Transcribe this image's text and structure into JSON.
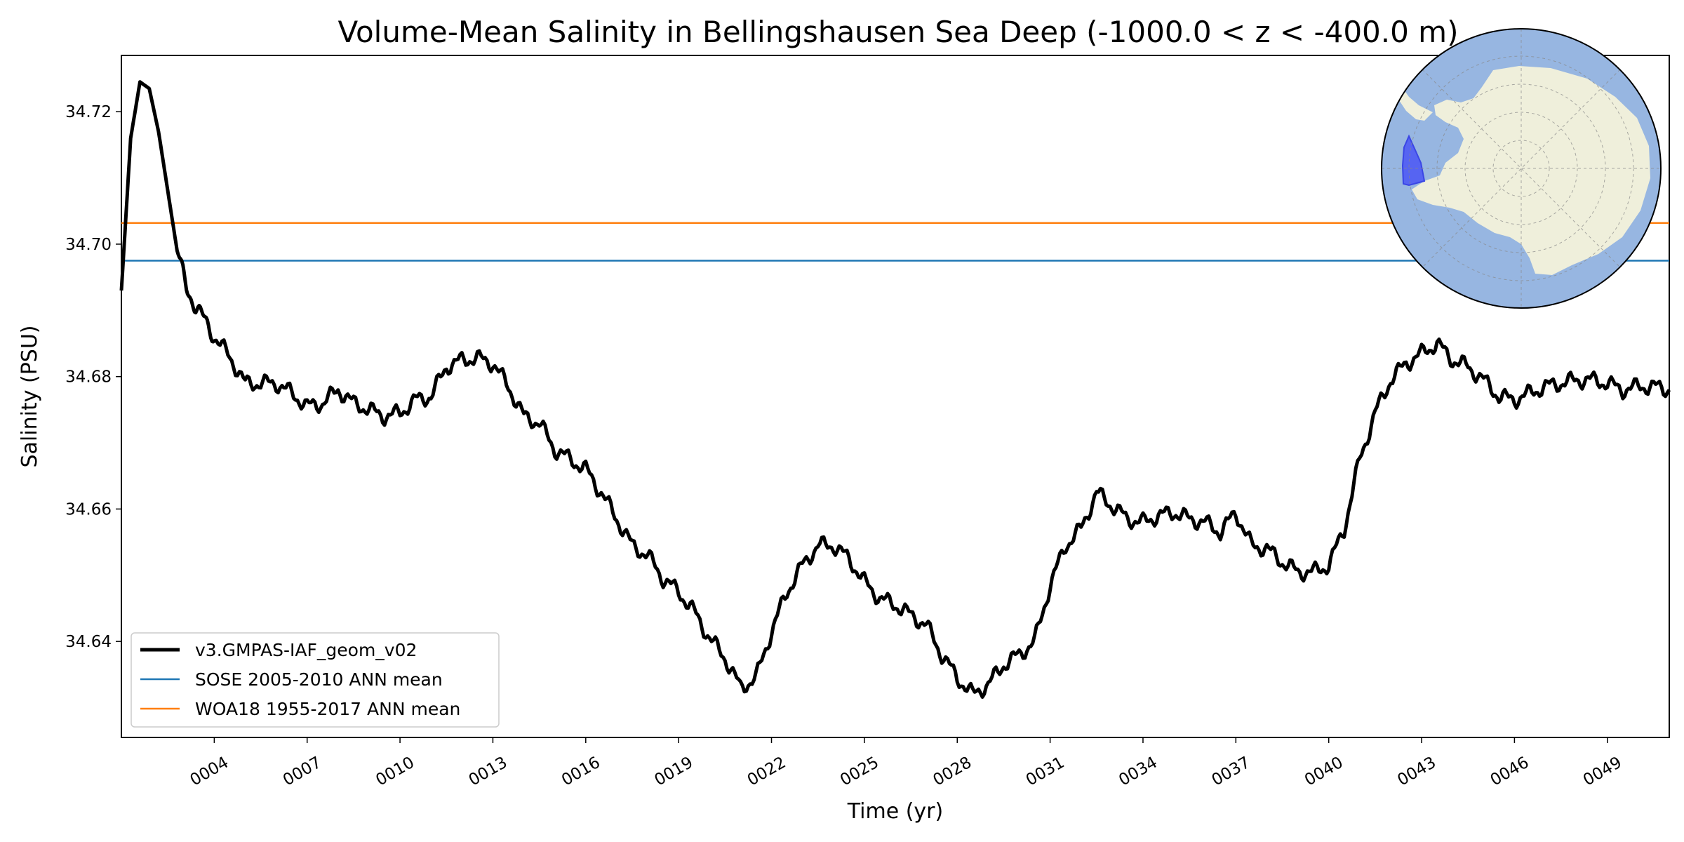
{
  "chart_data": {
    "type": "line",
    "title": "Volume-Mean Salinity in Bellingshausen Sea Deep (-1000.0 < z < -400.0 m)",
    "xlabel": "Time (yr)",
    "ylabel": "Salinity (PSU)",
    "xlim": [
      1.0,
      51.0
    ],
    "ylim": [
      34.6255,
      34.7285
    ],
    "x_ticks": [
      {
        "value": 4,
        "label": "0004"
      },
      {
        "value": 7,
        "label": "0007"
      },
      {
        "value": 10,
        "label": "0010"
      },
      {
        "value": 13,
        "label": "0013"
      },
      {
        "value": 16,
        "label": "0016"
      },
      {
        "value": 19,
        "label": "0019"
      },
      {
        "value": 22,
        "label": "0022"
      },
      {
        "value": 25,
        "label": "0025"
      },
      {
        "value": 28,
        "label": "0028"
      },
      {
        "value": 31,
        "label": "0031"
      },
      {
        "value": 34,
        "label": "0034"
      },
      {
        "value": 37,
        "label": "0037"
      },
      {
        "value": 40,
        "label": "0040"
      },
      {
        "value": 43,
        "label": "0043"
      },
      {
        "value": 46,
        "label": "0046"
      },
      {
        "value": 49,
        "label": "0049"
      }
    ],
    "y_ticks": [
      {
        "value": 34.64,
        "label": "34.64"
      },
      {
        "value": 34.66,
        "label": "34.66"
      },
      {
        "value": 34.68,
        "label": "34.68"
      },
      {
        "value": 34.7,
        "label": "34.70"
      },
      {
        "value": 34.72,
        "label": "34.72"
      }
    ],
    "legend_position": "lower-left",
    "series": [
      {
        "name": "v3.GMPAS-IAF_geom_v02",
        "color": "#000000",
        "style": "thick",
        "x": [
          1.0,
          1.3,
          1.6,
          1.9,
          2.2,
          2.5,
          2.8,
          3.1,
          3.4,
          3.7,
          4.0,
          4.5,
          5.0,
          5.5,
          6.0,
          6.5,
          7.0,
          7.5,
          8.0,
          8.5,
          9.0,
          9.5,
          10.0,
          10.5,
          11.0,
          11.5,
          12.0,
          12.5,
          13.0,
          13.5,
          14.0,
          14.5,
          15.0,
          15.5,
          16.0,
          16.5,
          17.0,
          17.5,
          18.0,
          18.5,
          19.0,
          19.5,
          20.0,
          20.5,
          21.0,
          21.5,
          22.0,
          22.5,
          23.0,
          23.5,
          24.0,
          24.5,
          25.0,
          25.5,
          26.0,
          26.5,
          27.0,
          27.5,
          28.0,
          28.5,
          29.0,
          29.5,
          30.0,
          30.5,
          31.0,
          31.5,
          32.0,
          32.5,
          33.0,
          33.5,
          34.0,
          34.5,
          35.0,
          35.5,
          36.0,
          36.5,
          37.0,
          37.5,
          38.0,
          38.5,
          39.0,
          39.5,
          40.0,
          40.5,
          41.0,
          41.5,
          42.0,
          42.5,
          43.0,
          43.5,
          44.0,
          44.5,
          45.0,
          45.5,
          46.0,
          46.5,
          47.0,
          47.5,
          48.0,
          48.5,
          49.0,
          49.5,
          50.0,
          50.5,
          51.0
        ],
        "y": [
          34.693,
          34.716,
          34.7245,
          34.7235,
          34.717,
          34.708,
          34.699,
          34.6935,
          34.6905,
          34.6885,
          34.686,
          34.683,
          34.679,
          34.679,
          34.679,
          34.6775,
          34.6755,
          34.676,
          34.678,
          34.676,
          34.675,
          34.674,
          34.6745,
          34.6765,
          34.677,
          34.6815,
          34.6825,
          34.6828,
          34.682,
          34.6785,
          34.674,
          34.673,
          34.669,
          34.6675,
          34.666,
          34.6625,
          34.6585,
          34.6545,
          34.653,
          34.6495,
          34.6475,
          34.6445,
          34.6405,
          34.6375,
          34.633,
          34.6345,
          34.6415,
          34.6475,
          34.6515,
          34.6545,
          34.6545,
          34.6525,
          34.649,
          34.6465,
          34.6455,
          34.644,
          34.6425,
          34.638,
          34.6345,
          34.632,
          34.6335,
          34.6365,
          34.638,
          34.64,
          34.6485,
          34.6545,
          34.657,
          34.6625,
          34.6605,
          34.6585,
          34.658,
          34.659,
          34.6595,
          34.6585,
          34.658,
          34.6565,
          34.6595,
          34.6545,
          34.654,
          34.652,
          34.6505,
          34.6505,
          34.6515,
          34.657,
          34.6675,
          34.6745,
          34.6795,
          34.682,
          34.6835,
          34.685,
          34.6825,
          34.6815,
          34.6795,
          34.677,
          34.6765,
          34.6775,
          34.6785,
          34.679,
          34.6795,
          34.6795,
          34.679,
          34.678,
          34.6785,
          34.6785,
          34.678
        ]
      },
      {
        "name": "SOSE 2005-2010 ANN mean",
        "color": "#1f77b4",
        "style": "hline",
        "value": 34.6975
      },
      {
        "name": "WOA18 1955-2017 ANN mean",
        "color": "#ff7f0e",
        "style": "hline",
        "value": 34.7032
      }
    ],
    "inset_map": {
      "description": "south-polar",
      "ocean_color": "#97b6e1",
      "land_color": "#efefdb",
      "region_color": "#4a56f5"
    }
  }
}
